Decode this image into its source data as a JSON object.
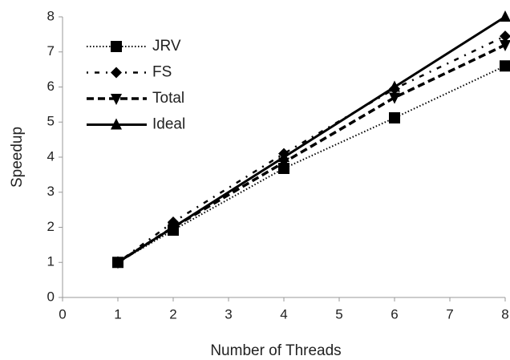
{
  "chart_data": {
    "type": "line",
    "x_label": "Number of Threads",
    "y_label": "Speedup",
    "x": [
      1,
      2,
      4,
      6,
      8
    ],
    "series": [
      {
        "name": "JRV",
        "color": "#000000",
        "line_style": "dotted",
        "marker": "square",
        "values": [
          1,
          1.92,
          3.68,
          5.12,
          6.6
        ]
      },
      {
        "name": "FS",
        "color": "#000000",
        "line_style": "dashdot",
        "marker": "diamond",
        "values": [
          1,
          2.15,
          4.1,
          5.95,
          7.45
        ]
      },
      {
        "name": "Total",
        "color": "#000000",
        "line_style": "dashed",
        "marker": "triangle-down",
        "values": [
          1,
          2.0,
          3.85,
          5.7,
          7.2
        ]
      },
      {
        "name": "Ideal",
        "color": "#000000",
        "line_style": "solid",
        "marker": "triangle-up",
        "values": [
          1,
          2,
          4,
          6,
          8
        ]
      }
    ],
    "xlim": [
      0,
      8
    ],
    "xticks": [
      0,
      1,
      2,
      3,
      4,
      5,
      6,
      7,
      8
    ],
    "ylim": [
      0,
      8
    ],
    "yticks": [
      0,
      1,
      2,
      3,
      4,
      5,
      6,
      7,
      8
    ],
    "grid": false,
    "legend": "upper left"
  }
}
